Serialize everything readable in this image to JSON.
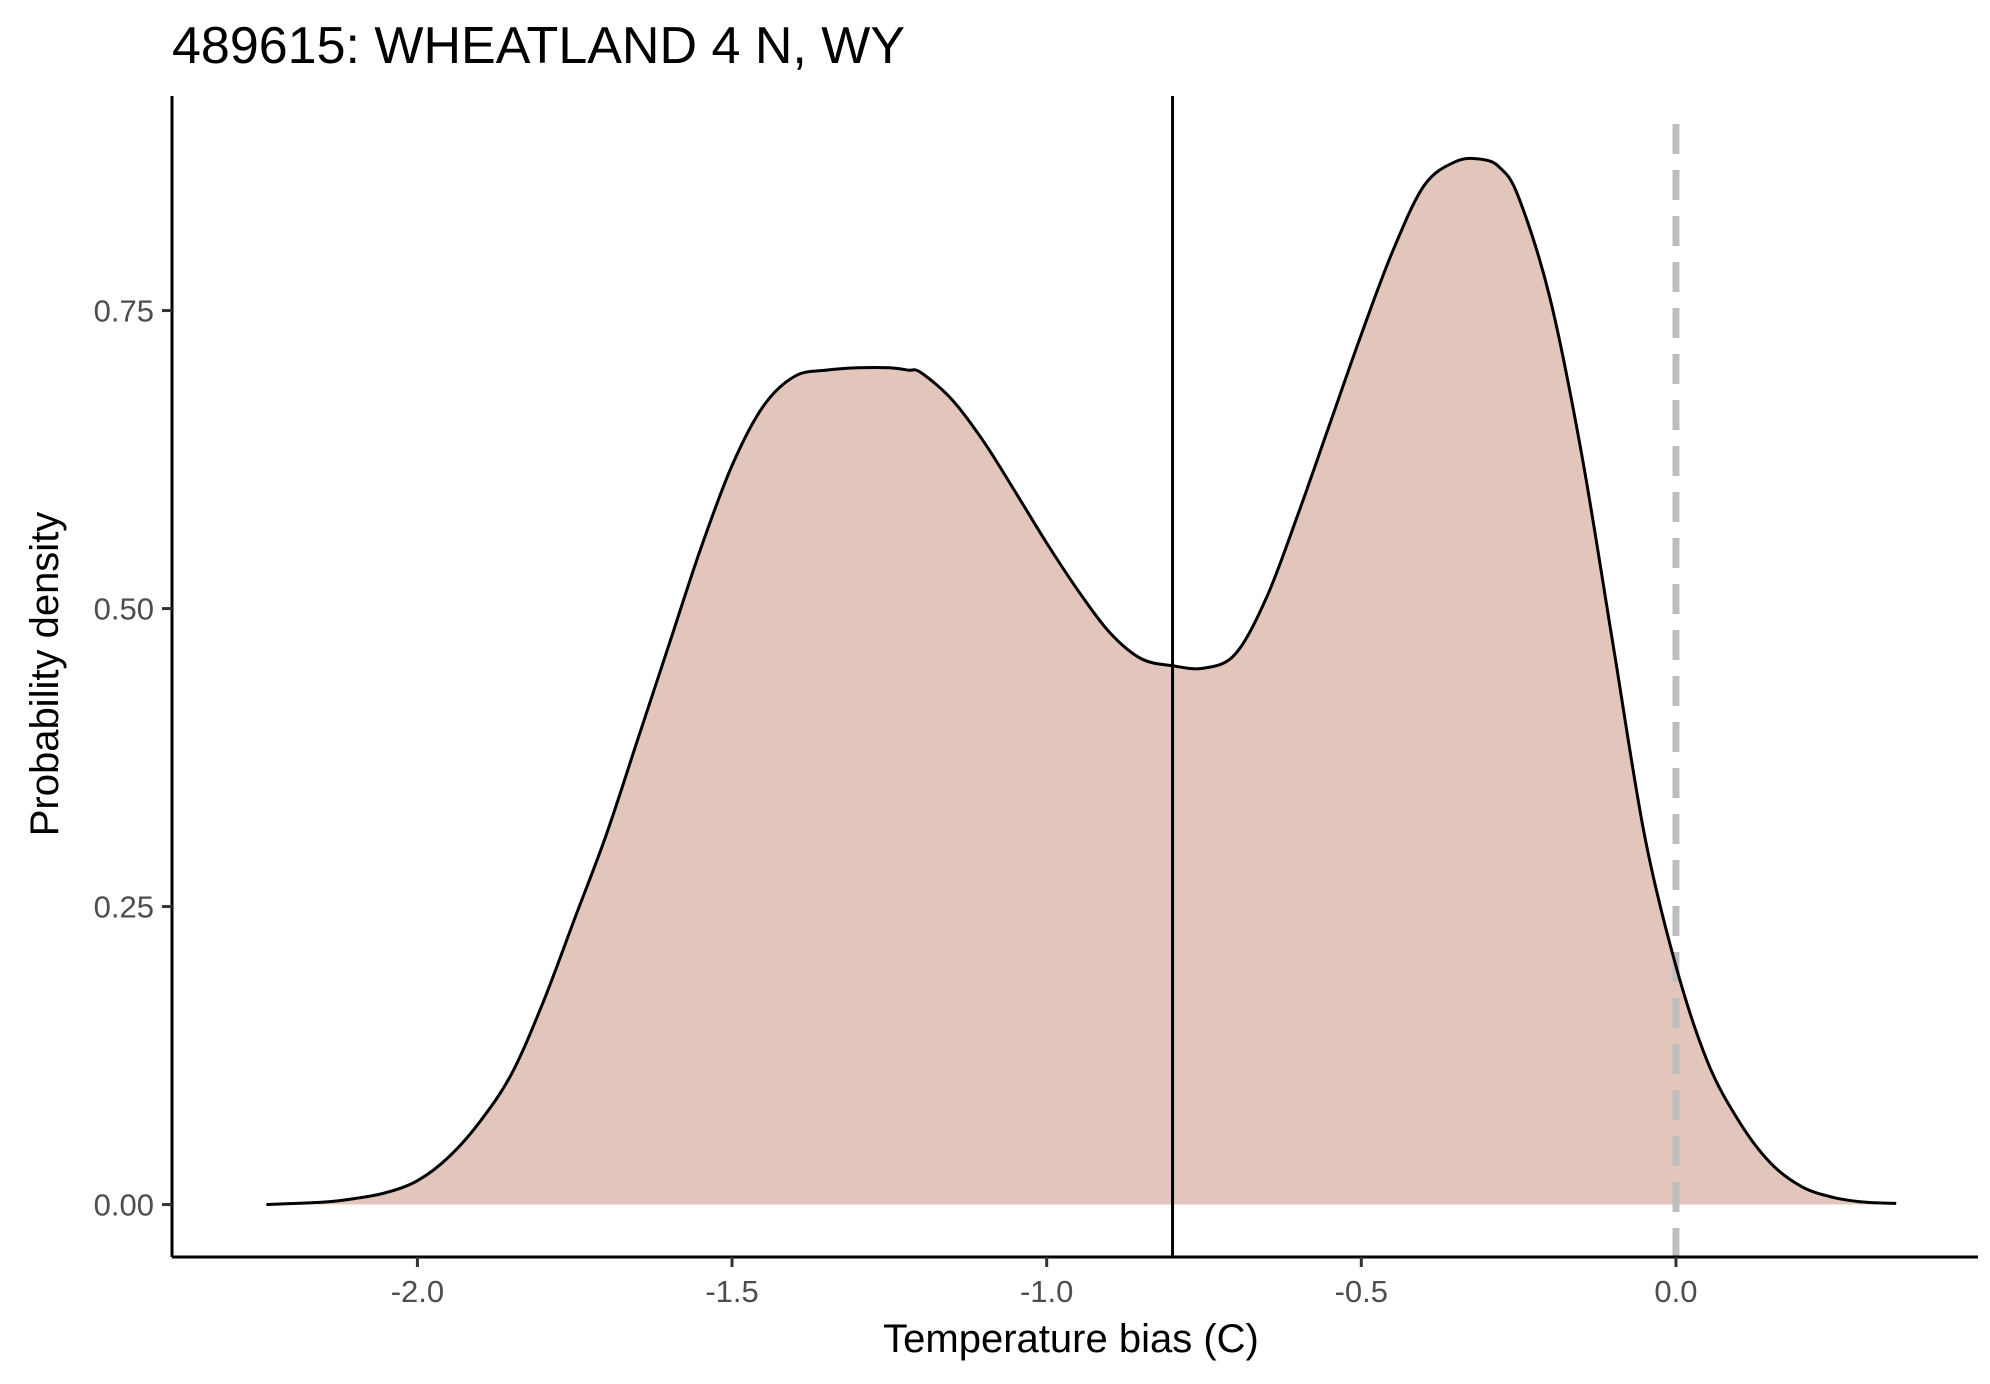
{
  "chart_data": {
    "type": "area",
    "title": "489615: WHEATLAND 4 N, WY",
    "xlabel": "Temperature bias (C)",
    "ylabel": "Probability density",
    "xlim": [
      -2.39,
      0.48
    ],
    "ylim": [
      -0.044,
      0.93
    ],
    "x_ticks": [
      -2.0,
      -1.5,
      -1.0,
      -0.5,
      0.0
    ],
    "x_tick_labels": [
      "-2.0",
      "-1.5",
      "-1.0",
      "-0.5",
      "0.0"
    ],
    "y_ticks": [
      0.0,
      0.25,
      0.5,
      0.75
    ],
    "y_tick_labels": [
      "0.00",
      "0.25",
      "0.50",
      "0.75"
    ],
    "grid": false,
    "legend": "none",
    "series": [
      {
        "x": [
          -2.24,
          -2.15,
          -2.1,
          -2.05,
          -2.0,
          -1.95,
          -1.9,
          -1.85,
          -1.8,
          -1.75,
          -1.7,
          -1.65,
          -1.6,
          -1.55,
          -1.5,
          -1.45,
          -1.4,
          -1.35,
          -1.3,
          -1.25,
          -1.22,
          -1.2,
          -1.15,
          -1.1,
          -1.05,
          -1.0,
          -0.95,
          -0.9,
          -0.85,
          -0.8,
          -0.75,
          -0.7,
          -0.65,
          -0.6,
          -0.55,
          -0.5,
          -0.45,
          -0.4,
          -0.35,
          -0.31,
          -0.28,
          -0.25,
          -0.2,
          -0.15,
          -0.1,
          -0.05,
          0.0,
          0.05,
          0.1,
          0.15,
          0.2,
          0.25,
          0.3,
          0.35
        ],
        "y": [
          0.0,
          0.002,
          0.005,
          0.01,
          0.02,
          0.04,
          0.07,
          0.11,
          0.17,
          0.24,
          0.31,
          0.39,
          0.47,
          0.55,
          0.62,
          0.67,
          0.695,
          0.7,
          0.702,
          0.702,
          0.7,
          0.698,
          0.675,
          0.64,
          0.598,
          0.555,
          0.515,
          0.48,
          0.458,
          0.452,
          0.45,
          0.462,
          0.51,
          0.58,
          0.655,
          0.73,
          0.8,
          0.855,
          0.875,
          0.877,
          0.87,
          0.845,
          0.76,
          0.63,
          0.47,
          0.31,
          0.2,
          0.12,
          0.07,
          0.035,
          0.015,
          0.006,
          0.002,
          0.001
        ]
      }
    ],
    "vlines": [
      {
        "x": -0.8,
        "style": "solid",
        "color": "#000000"
      },
      {
        "x": 0.0,
        "style": "dashed",
        "color": "#bebebe"
      }
    ],
    "fill_color": "#e2c5bb",
    "line_color": "#000000"
  }
}
